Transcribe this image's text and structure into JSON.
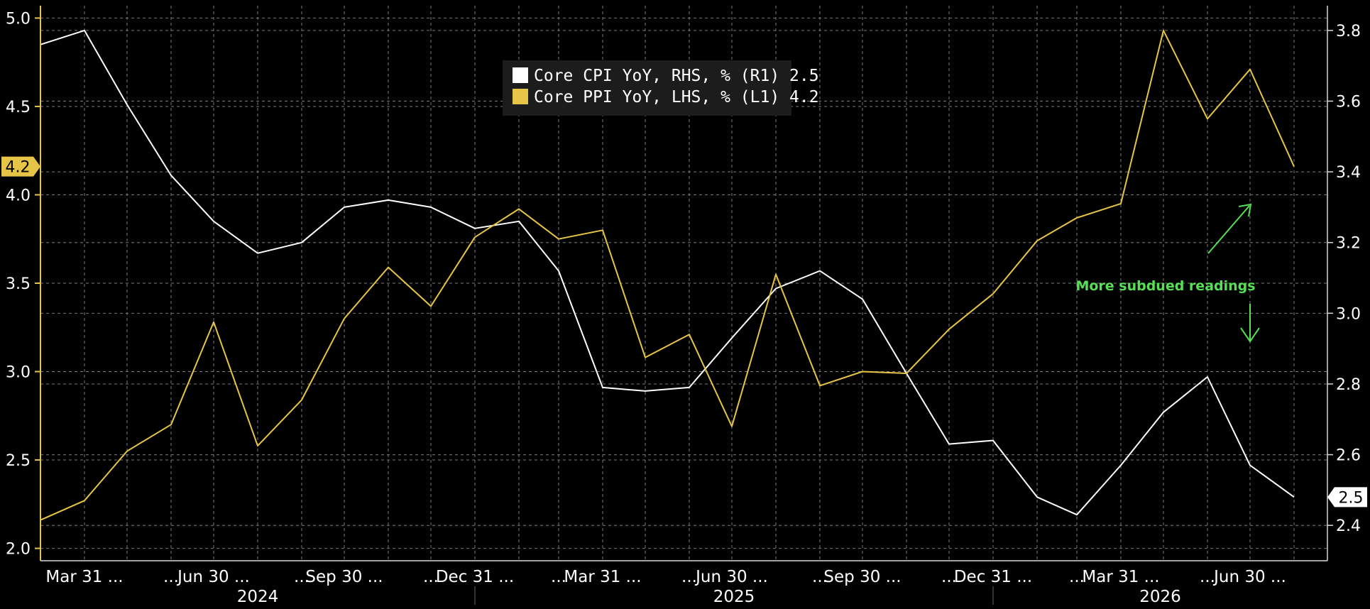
{
  "chart_data": {
    "type": "line",
    "x": [
      "2024-02-29",
      "2024-03-31",
      "2024-04-30",
      "2024-05-31",
      "2024-06-30",
      "2024-07-31",
      "2024-08-31",
      "2024-09-30",
      "2024-10-31",
      "2024-11-30",
      "2024-12-31",
      "2025-01-31",
      "2025-02-28",
      "2025-03-31",
      "2025-04-30",
      "2025-05-31",
      "2025-06-30",
      "2025-07-31",
      "2025-08-31",
      "2025-09-30",
      "2025-10-31",
      "2025-11-30",
      "2025-12-31",
      "2026-01-31",
      "2026-02-28",
      "2026-03-31",
      "2026-04-30",
      "2026-05-31",
      "2026-06-30",
      "2026-07-31"
    ],
    "x_tick_labels": [
      "Mar 31 ...",
      "...",
      "Jun 30 ...",
      "...",
      "Sep 30 ...",
      "...",
      "Dec 31 ...",
      "...",
      "Mar 31 ...",
      "...",
      "Jun 30 ...",
      "...",
      "Sep 30 ...",
      "...",
      "Dec 31 ...",
      "...",
      "Mar 31 ...",
      "...",
      "Jun 30 ..."
    ],
    "x_tick_dates": [
      "2024-03-31",
      "2024-05-31",
      "2024-06-30",
      "2024-08-31",
      "2024-09-30",
      "2024-11-30",
      "2024-12-31",
      "2025-02-28",
      "2025-03-31",
      "2025-05-31",
      "2025-06-30",
      "2025-08-31",
      "2025-09-30",
      "2025-11-30",
      "2025-12-31",
      "2026-02-28",
      "2026-03-31",
      "2026-05-31",
      "2026-06-30"
    ],
    "year_labels": [
      {
        "label": "2024",
        "start": "2024-02-29",
        "end": "2024-12-31"
      },
      {
        "label": "2025",
        "start": "2024-12-31",
        "end": "2025-12-31"
      },
      {
        "label": "2026",
        "start": "2025-12-31",
        "end": "2026-07-31"
      }
    ],
    "series": [
      {
        "name": "Core CPI YoY, RHS, % (R1)",
        "last_value": "2.5",
        "axis": "right",
        "color": "#ffffff",
        "values": [
          3.76,
          3.8,
          3.59,
          3.39,
          3.26,
          3.17,
          3.2,
          3.3,
          3.32,
          3.3,
          3.24,
          3.26,
          3.12,
          2.79,
          2.78,
          2.79,
          2.93,
          3.07,
          3.12,
          3.04,
          2.83,
          2.63,
          2.64,
          2.48,
          2.43,
          2.57,
          2.72,
          2.82,
          2.57,
          2.48
        ]
      },
      {
        "name": "Core PPI YoY, LHS, % (L1)",
        "last_value": "4.2",
        "axis": "left",
        "color": "#e6c546",
        "values": [
          2.16,
          2.27,
          2.55,
          2.7,
          3.28,
          2.58,
          2.84,
          3.3,
          3.59,
          3.37,
          3.76,
          3.92,
          3.75,
          3.8,
          3.08,
          3.21,
          2.69,
          3.55,
          2.92,
          3.0,
          2.99,
          3.24,
          3.44,
          3.74,
          3.87,
          3.95,
          4.93,
          4.43,
          4.71,
          4.16
        ]
      }
    ],
    "y_left": {
      "ticks": [
        2.0,
        2.5,
        3.0,
        3.5,
        4.0,
        4.5,
        5.0
      ],
      "tick_labels": [
        "2.0",
        "2.5",
        "3.0",
        "3.5",
        "4.0",
        "4.5",
        "5.0"
      ],
      "range": [
        1.93,
        5.07
      ],
      "current_marker": "4.2"
    },
    "y_right": {
      "ticks": [
        2.4,
        2.6,
        2.8,
        3.0,
        3.2,
        3.4,
        3.6,
        3.8
      ],
      "tick_labels": [
        "2.4",
        "2.6",
        "2.8",
        "3.0",
        "3.2",
        "3.4",
        "3.6",
        "3.8"
      ],
      "range": [
        2.3,
        3.87
      ],
      "current_marker": "2.5"
    },
    "annotations": [
      {
        "text": "More subdued readings",
        "color": "#55e055"
      }
    ],
    "grid": true,
    "legend_position": "top-center"
  }
}
